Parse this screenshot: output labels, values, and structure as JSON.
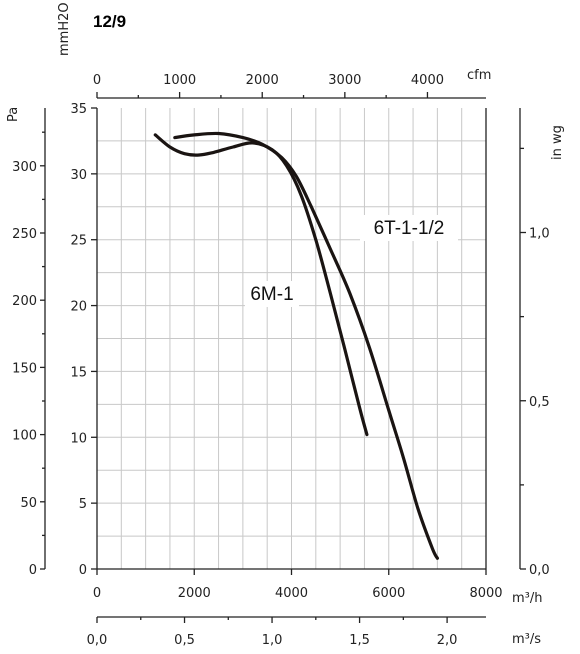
{
  "chart_data": {
    "type": "line",
    "title": "12/9",
    "x_axis": {
      "unit": "m³/h",
      "ticks": [
        "0",
        "2000",
        "4000",
        "6000",
        "8000"
      ],
      "range": [
        0,
        8000
      ]
    },
    "x_axis_cfm": {
      "unit": "cfm",
      "ticks": [
        "0",
        "1000",
        "2000",
        "3000",
        "4000"
      ]
    },
    "x_axis_m3s": {
      "unit": "m³/s",
      "ticks": [
        "0,0",
        "0,5",
        "1,0",
        "1,5",
        "2,0"
      ]
    },
    "y_axis_pa": {
      "unit": "Pa",
      "ticks": [
        "0",
        "50",
        "100",
        "150",
        "200",
        "250",
        "300"
      ],
      "range": [
        0,
        343
      ]
    },
    "y_axis_mmh2o": {
      "unit": "mmH2O",
      "ticks": [
        "0",
        "5",
        "10",
        "15",
        "20",
        "25",
        "30",
        "35"
      ],
      "range": [
        0,
        35
      ]
    },
    "y_axis_inwg": {
      "unit": "in wg",
      "ticks": [
        "0,0",
        "0,5",
        "1,0"
      ]
    },
    "grid": true,
    "series": [
      {
        "name": "6M-1",
        "x": [
          1200,
          1500,
          1800,
          2100,
          2400,
          2800,
          3200,
          3600,
          3900,
          4200,
          4500,
          4800,
          5100,
          5400,
          5550
        ],
        "y": [
          323,
          314,
          309,
          308,
          310,
          314,
          317,
          312,
          300,
          278,
          245,
          205,
          163,
          120,
          100
        ]
      },
      {
        "name": "6T-1-1/2",
        "x": [
          1600,
          2000,
          2500,
          3000,
          3400,
          3800,
          4100,
          4400,
          4800,
          5200,
          5600,
          6000,
          6300,
          6600,
          6900,
          7000
        ],
        "y": [
          321,
          323,
          324,
          321,
          316,
          306,
          292,
          270,
          238,
          205,
          165,
          118,
          83,
          45,
          15,
          8
        ]
      }
    ]
  }
}
